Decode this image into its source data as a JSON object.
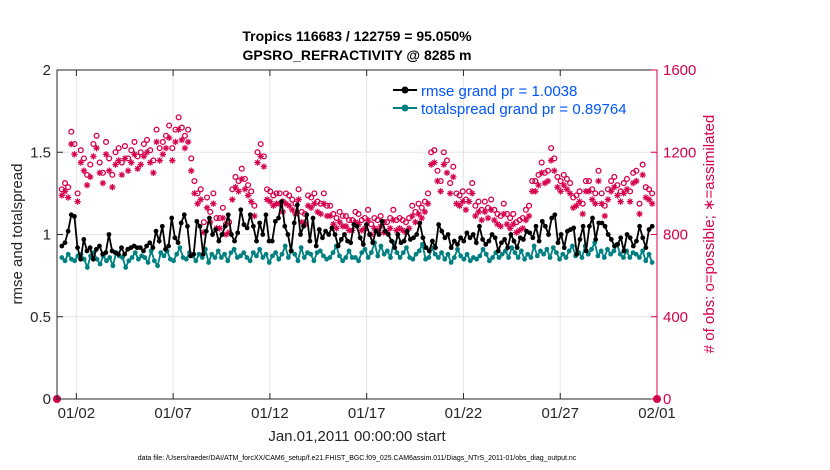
{
  "colors": {
    "rmse": "#000000",
    "spread": "#008080",
    "obs": "#d6004c",
    "legend_text": "#0055ff",
    "grid": "#e6e6e6",
    "axis": "#262626"
  },
  "chart_data": {
    "type": "line",
    "title_line1": "Tropics 116683 / 122759 = 95.050%",
    "title_line2": "GPSRO_REFRACTIVITY @ 8285 m",
    "xlabel": "Jan.01,2011 00:00:00 start",
    "ylabel_left": "rmse and totalspread",
    "ylabel_right": "# of obs: o=possible; ∗=assimilated",
    "xlim": [
      0,
      31
    ],
    "ylim_left": [
      0,
      2
    ],
    "ylim_right": [
      0,
      1600
    ],
    "x_ticks": [
      {
        "v": 1,
        "label": "01/02"
      },
      {
        "v": 6,
        "label": "01/07"
      },
      {
        "v": 11,
        "label": "01/12"
      },
      {
        "v": 16,
        "label": "01/17"
      },
      {
        "v": 21,
        "label": "01/22"
      },
      {
        "v": 26,
        "label": "01/27"
      },
      {
        "v": 31,
        "label": "02/01"
      }
    ],
    "y_ticks_left": [
      {
        "v": 0,
        "label": "0"
      },
      {
        "v": 0.5,
        "label": "0.5"
      },
      {
        "v": 1,
        "label": "1"
      },
      {
        "v": 1.5,
        "label": "1.5"
      },
      {
        "v": 2,
        "label": "2"
      }
    ],
    "y_ticks_right": [
      {
        "v": 0,
        "label": "0"
      },
      {
        "v": 400,
        "label": "400"
      },
      {
        "v": 800,
        "label": "800"
      },
      {
        "v": 1200,
        "label": "1200"
      },
      {
        "v": 1600,
        "label": "1600"
      }
    ],
    "grid": true,
    "legend_position": "top-right",
    "series": [
      {
        "name": "rmse grand pr = 1.0038",
        "axis": "left",
        "marker": "dot",
        "values": [
          0.93,
          0.95,
          1.02,
          1.12,
          1.11,
          0.92,
          0.85,
          0.97,
          0.9,
          0.92,
          0.85,
          0.91,
          0.93,
          0.88,
          0.89,
          1.0,
          0.9,
          0.89,
          0.88,
          0.92,
          0.88,
          0.91,
          0.92,
          0.93,
          0.92,
          0.92,
          0.9,
          0.93,
          0.95,
          0.92,
          1.02,
          0.96,
          1.05,
          0.91,
          0.93,
          1.1,
          0.98,
          0.95,
          1.07,
          1.12,
          1.05,
          0.87,
          0.88,
          1.08,
          1.05,
          0.88,
          1.02,
          1.1,
          1.0,
          1.03,
          0.96,
          1.0,
          1.05,
          1.12,
          1.0,
          0.96,
          1.01,
          1.15,
          1.06,
          1.04,
          1.12,
          1.05,
          0.96,
          1.07,
          1.0,
          1.12,
          0.96,
          0.96,
          1.08,
          1.1,
          1.2,
          1.05,
          1.0,
          0.9,
          1.07,
          1.18,
          1.0,
          1.05,
          1.12,
          0.96,
          1.1,
          0.93,
          1.03,
          0.98,
          1.02,
          1.0,
          1.04,
          1.0,
          0.93,
          0.97,
          1.0,
          0.96,
          0.95,
          1.06,
          1.05,
          0.98,
          0.94,
          1.06,
          1.0,
          0.95,
          1.02,
          1.0,
          1.08,
          1.02,
          1.0,
          0.96,
          0.92,
          1.0,
          0.95,
          0.96,
          1.02,
          0.97,
          0.98,
          1.0,
          1.07,
          0.98,
          0.92,
          0.9,
          0.96,
          0.92,
          1.06,
          1.02,
          0.98,
          1.0,
          0.92,
          0.96,
          0.94,
          0.98,
          0.96,
          1.01,
          0.98,
          1.0,
          0.95,
          1.05,
          0.97,
          0.94,
          0.96,
          1.0,
          0.98,
          0.9,
          0.95,
          0.97,
          0.92,
          1.0,
          0.96,
          0.92,
          0.98,
          0.97,
          1.02,
          1.01,
          0.98,
          1.05,
          0.96,
          1.08,
          1.05,
          1.0,
          1.1,
          1.12,
          0.95,
          1.0,
          0.92,
          1.02,
          1.03,
          1.04,
          0.88,
          0.97,
          1.05,
          0.9,
          1.05,
          1.1,
          0.97,
          1.07,
          1.07,
          1.05,
          1.0,
          0.97,
          0.93,
          0.94,
          0.98,
          0.9,
          1.0,
          0.98,
          0.93,
          0.96,
          1.05,
          0.98,
          0.92,
          1.03,
          1.05
        ]
      },
      {
        "name": "totalspread grand pr = 0.89764",
        "axis": "left",
        "marker": "dot",
        "values": [
          0.86,
          0.84,
          0.88,
          0.85,
          0.84,
          0.87,
          0.88,
          0.85,
          0.8,
          0.87,
          0.89,
          0.85,
          0.82,
          0.87,
          0.84,
          0.86,
          0.81,
          0.89,
          0.87,
          0.86,
          0.8,
          0.84,
          0.86,
          0.89,
          0.85,
          0.87,
          0.86,
          0.83,
          0.9,
          0.84,
          0.81,
          0.89,
          0.87,
          0.9,
          0.85,
          0.84,
          0.88,
          0.92,
          0.86,
          0.85,
          0.89,
          0.87,
          0.84,
          0.88,
          0.86,
          0.91,
          0.83,
          0.88,
          0.86,
          0.9,
          0.86,
          0.88,
          0.84,
          0.89,
          0.91,
          0.86,
          0.87,
          0.89,
          0.86,
          0.84,
          0.89,
          0.87,
          0.91,
          0.86,
          0.88,
          0.83,
          0.87,
          0.89,
          0.85,
          0.88,
          0.93,
          0.86,
          0.9,
          0.88,
          0.84,
          0.92,
          0.86,
          0.89,
          0.88,
          0.84,
          0.89,
          0.9,
          0.87,
          0.85,
          0.86,
          0.89,
          0.93,
          0.87,
          0.84,
          0.86,
          0.9,
          0.86,
          0.86,
          0.84,
          0.89,
          0.91,
          0.86,
          0.89,
          0.95,
          0.87,
          0.93,
          0.88,
          0.9,
          0.86,
          0.95,
          0.89,
          0.86,
          0.89,
          0.92,
          0.86,
          0.85,
          0.88,
          0.9,
          0.94,
          0.85,
          0.86,
          0.92,
          0.88,
          0.86,
          0.89,
          0.85,
          0.88,
          0.83,
          0.86,
          0.91,
          0.87,
          0.85,
          0.88,
          0.84,
          0.86,
          0.85,
          0.87,
          0.91,
          0.88,
          0.84,
          0.86,
          0.89,
          0.86,
          0.88,
          0.9,
          0.86,
          0.92,
          0.89,
          0.86,
          0.9,
          0.85,
          0.88,
          0.86,
          0.93,
          0.87,
          0.9,
          0.88,
          0.91,
          0.86,
          0.92,
          0.89,
          0.85,
          0.88,
          0.86,
          0.9,
          0.93,
          0.87,
          0.89,
          0.86,
          0.93,
          0.88,
          0.91,
          0.95,
          0.87,
          0.9,
          0.86,
          0.91,
          0.88,
          0.9,
          0.94,
          0.88,
          0.86,
          0.9,
          0.86,
          0.89,
          0.88,
          0.86,
          0.9,
          0.84,
          0.88,
          0.83
        ]
      },
      {
        "name": "obs possible",
        "axis": "right",
        "marker": "o",
        "values": [
          1020,
          1050,
          1030,
          1300,
          1240,
          1000,
          1210,
          1170,
          1090,
          1140,
          1240,
          1280,
          1150,
          1100,
          1250,
          1170,
          1090,
          1200,
          1220,
          1150,
          1230,
          1170,
          1210,
          1250,
          1180,
          1200,
          1240,
          1260,
          1210,
          1160,
          1310,
          1220,
          1250,
          1280,
          1330,
          1220,
          1310,
          1370,
          1320,
          1280,
          1310,
          1170,
          1060,
          1000,
          1020,
          860,
          980,
          910,
          1000,
          880,
          880,
          930,
          850,
          860,
          1020,
          1080,
          1060,
          1120,
          1070,
          1040,
          1010,
          940,
          1200,
          1240,
          1180,
          1020,
          1010,
          990,
          1000,
          1000,
          960,
          1000,
          990,
          970,
          950,
          1020,
          910,
          900,
          990,
          980,
          1000,
          960,
          950,
          1000,
          940,
          940,
          900,
          880,
          910,
          890,
          890,
          870,
          870,
          910,
          900,
          870,
          880,
          920,
          850,
          880,
          870,
          890,
          860,
          860,
          880,
          920,
          870,
          880,
          870,
          860,
          880,
          940,
          910,
          950,
          930,
          960,
          1000,
          1200,
          1210,
          1110,
          1060,
          1200,
          1160,
          1050,
          1130,
          1000,
          990,
          1010,
          970,
          1010,
          1050,
          940,
          960,
          920,
          960,
          930,
          970,
          920,
          900,
          890,
          950,
          900,
          880,
          900,
          860,
          870,
          880,
          920,
          940,
          1060,
          1060,
          1090,
          1150,
          1100,
          1110,
          1220,
          1170,
          1080,
          1060,
          1090,
          1070,
          1050,
          980,
          990,
          1010,
          950,
          1060,
          1060,
          1020,
          1000,
          1110,
          1000,
          940,
          1020,
          1060,
          1080,
          1040,
          1010,
          1050,
          1070,
          1010,
          1100,
          1110,
          950,
          1140,
          1030,
          1020,
          1000
        ]
      },
      {
        "name": "obs assimilated",
        "axis": "right",
        "marker": "*",
        "values": [
          990,
          1010,
          980,
          1240,
          1190,
          960,
          1150,
          1110,
          1040,
          1080,
          1180,
          1220,
          1100,
          1050,
          1190,
          1110,
          1030,
          1140,
          1160,
          1090,
          1170,
          1110,
          1150,
          1190,
          1120,
          1140,
          1180,
          1200,
          1150,
          1100,
          1250,
          1160,
          1190,
          1220,
          1270,
          1160,
          1250,
          1310,
          1260,
          1220,
          1250,
          1110,
          1000,
          950,
          970,
          810,
          930,
          860,
          950,
          830,
          830,
          880,
          800,
          810,
          970,
          1030,
          1010,
          1070,
          1020,
          990,
          960,
          890,
          1150,
          1180,
          1130,
          970,
          960,
          940,
          950,
          950,
          910,
          950,
          940,
          920,
          900,
          970,
          860,
          850,
          940,
          930,
          950,
          910,
          900,
          950,
          890,
          890,
          850,
          830,
          860,
          840,
          840,
          820,
          820,
          860,
          850,
          820,
          830,
          870,
          800,
          830,
          820,
          840,
          810,
          810,
          830,
          870,
          820,
          830,
          820,
          810,
          830,
          890,
          860,
          900,
          880,
          910,
          950,
          1140,
          1150,
          1060,
          1010,
          1140,
          1100,
          1000,
          1080,
          950,
          940,
          960,
          920,
          960,
          1000,
          890,
          910,
          870,
          910,
          880,
          920,
          870,
          850,
          840,
          900,
          850,
          830,
          850,
          810,
          820,
          830,
          870,
          890,
          1010,
          1010,
          1040,
          1100,
          1050,
          1060,
          1160,
          1110,
          1030,
          1010,
          1040,
          1020,
          1000,
          930,
          940,
          960,
          900,
          1010,
          1010,
          970,
          950,
          1060,
          950,
          890,
          970,
          1010,
          1030,
          990,
          960,
          1000,
          1020,
          960,
          1050,
          1060,
          900,
          1090,
          980,
          970,
          950
        ]
      }
    ]
  },
  "footer": "data file: /Users/raeder/DAI/ATM_forcXX/CAM6_setup/f.e21.FHIST_BGC.f09_025.CAM6assim.011/Diags_NTrS_2011-01/obs_diag_output.nc"
}
